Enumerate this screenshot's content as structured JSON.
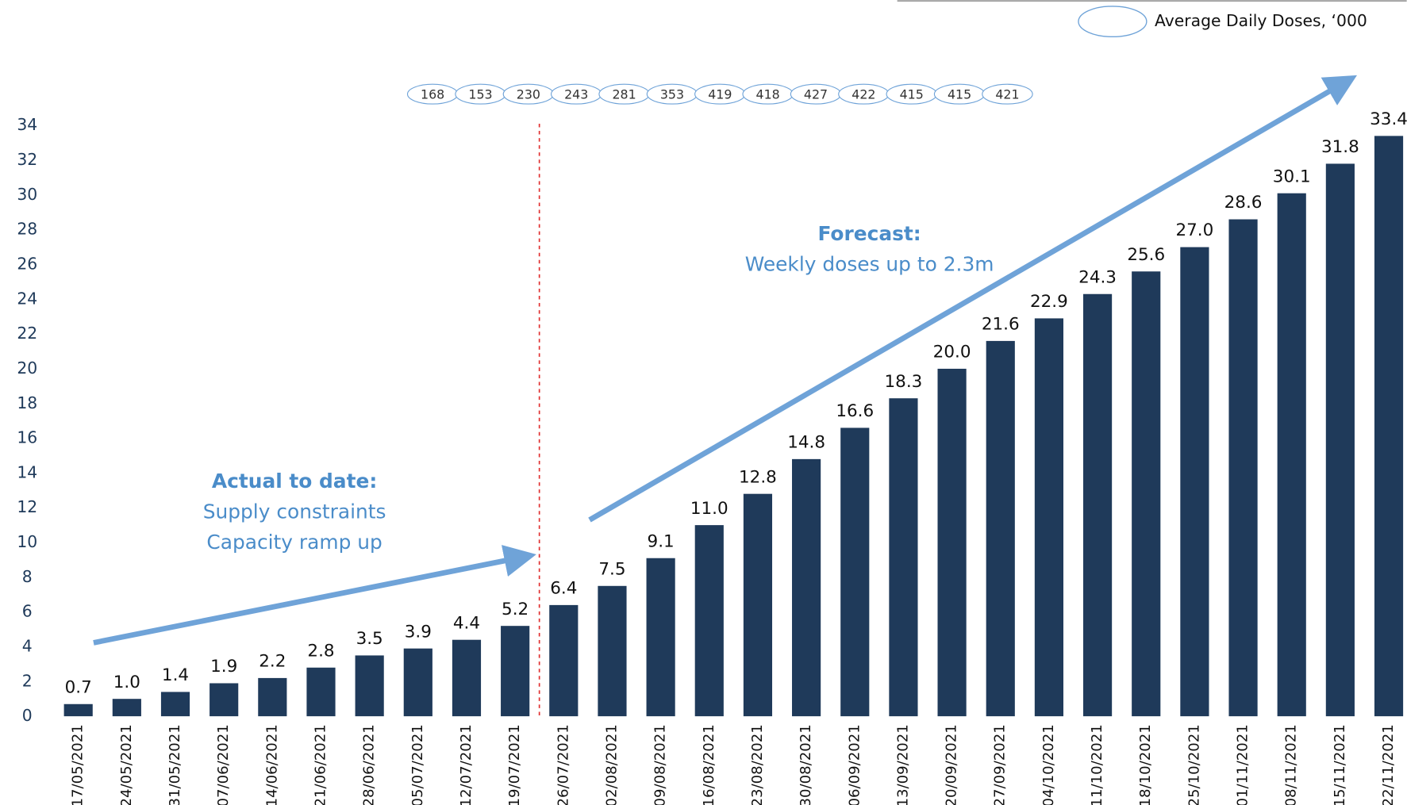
{
  "chart_data": {
    "type": "bar",
    "categories": [
      "17/05/2021",
      "24/05/2021",
      "31/05/2021",
      "07/06/2021",
      "14/06/2021",
      "21/06/2021",
      "28/06/2021",
      "05/07/2021",
      "12/07/2021",
      "19/07/2021",
      "26/07/2021",
      "02/08/2021",
      "09/08/2021",
      "16/08/2021",
      "23/08/2021",
      "30/08/2021",
      "06/09/2021",
      "13/09/2021",
      "20/09/2021",
      "27/09/2021",
      "04/10/2021",
      "11/10/2021",
      "18/10/2021",
      "25/10/2021",
      "01/11/2021",
      "08/11/2021",
      "15/11/2021",
      "22/11/2021"
    ],
    "values": [
      0.7,
      1.0,
      1.4,
      1.9,
      2.2,
      2.8,
      3.5,
      3.9,
      4.4,
      5.2,
      6.4,
      7.5,
      9.1,
      11.0,
      12.8,
      14.8,
      16.6,
      18.3,
      20.0,
      21.6,
      22.9,
      24.3,
      25.6,
      27.0,
      28.6,
      30.1,
      31.8,
      33.4
    ],
    "value_labels": [
      "0.7",
      "1.0",
      "1.4",
      "1.9",
      "2.2",
      "2.8",
      "3.5",
      "3.9",
      "4.4",
      "5.2",
      "6.4",
      "7.5",
      "9.1",
      "11.0",
      "12.8",
      "14.8",
      "16.6",
      "18.3",
      "20.0",
      "21.6",
      "22.9",
      "24.3",
      "25.6",
      "27.0",
      "28.6",
      "30.1",
      "31.8",
      "33.4"
    ],
    "color": "#1f3a5a",
    "ylim": [
      0,
      34
    ],
    "yticks": [
      0,
      2,
      4,
      6,
      8,
      10,
      12,
      14,
      16,
      18,
      20,
      22,
      24,
      26,
      28,
      30,
      32,
      34
    ],
    "daily_doses": {
      "name": "Average Daily Doses, ‘000",
      "values": [
        168,
        153,
        230,
        243,
        281,
        353,
        419,
        418,
        427,
        422,
        415,
        415,
        421
      ]
    },
    "annotations": {
      "actual_title": "Actual to date:",
      "actual_lines": [
        "Supply constraints",
        "Capacity ramp up"
      ],
      "forecast_title": "Forecast:",
      "forecast_line": "Weekly doses up to 2.3m"
    }
  }
}
